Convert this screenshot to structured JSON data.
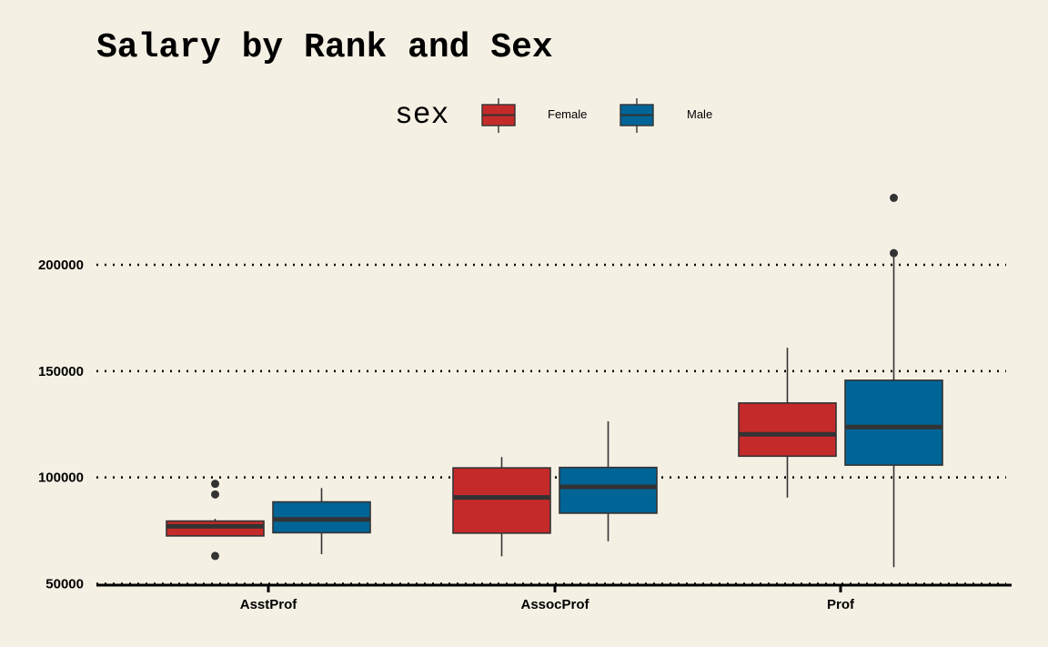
{
  "title": "Salary by Rank and Sex",
  "legend": {
    "title": "sex",
    "position": "top",
    "entries": [
      {
        "label": "Female",
        "color": "#c52a2a"
      },
      {
        "label": "Male",
        "color": "#006496"
      }
    ]
  },
  "colors": {
    "background": "#f5f0e4",
    "female": "#c52a2a",
    "male": "#006496",
    "median_line": "#333333",
    "outline": "#333333",
    "gridline": "#000000"
  },
  "chart_data": {
    "type": "boxplot",
    "title": "Salary by Rank and Sex",
    "xlabel": "",
    "ylabel": "",
    "categories": [
      "AsstProf",
      "AssocProf",
      "Prof"
    ],
    "ylim": [
      50000,
      240000
    ],
    "yticks": [
      50000,
      100000,
      150000,
      200000
    ],
    "ytick_labels": [
      "50000",
      "100000",
      "150000",
      "200000"
    ],
    "grid": "horizontal dotted",
    "series": [
      {
        "name": "Female",
        "color": "#c52a2a",
        "boxes": [
          {
            "category": "AsstProf",
            "whisker_low": 72500,
            "q1": 72500,
            "median": 77000,
            "q3": 79500,
            "whisker_high": 80500,
            "outliers": [
              63100,
              92000,
              97000
            ]
          },
          {
            "category": "AssocProf",
            "whisker_low": 62900,
            "q1": 73800,
            "median": 90600,
            "q3": 104500,
            "whisker_high": 109600,
            "outliers": []
          },
          {
            "category": "Prof",
            "whisker_low": 90500,
            "q1": 110000,
            "median": 120300,
            "q3": 135000,
            "whisker_high": 161000,
            "outliers": []
          }
        ]
      },
      {
        "name": "Male",
        "color": "#006496",
        "boxes": [
          {
            "category": "AsstProf",
            "whisker_low": 63900,
            "q1": 74000,
            "median": 80300,
            "q3": 88500,
            "whisker_high": 95000,
            "outliers": []
          },
          {
            "category": "AssocProf",
            "whisker_low": 70000,
            "q1": 83200,
            "median": 95600,
            "q3": 104700,
            "whisker_high": 126400,
            "outliers": []
          },
          {
            "category": "Prof",
            "whisker_low": 57800,
            "q1": 105800,
            "median": 123700,
            "q3": 145700,
            "whisker_high": 204000,
            "outliers": [
              205500,
              231500
            ]
          }
        ]
      }
    ]
  }
}
